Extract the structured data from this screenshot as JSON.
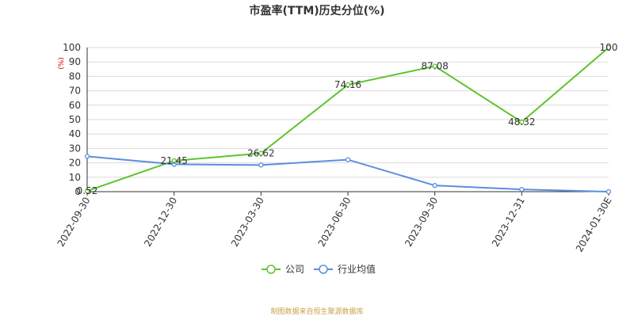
{
  "chart_data": {
    "type": "line",
    "title": "市盈率(TTM)历史分位(%)",
    "unit_label": "(%)",
    "categories": [
      "2022-09-30",
      "2022-12-30",
      "2023-03-30",
      "2023-06-30",
      "2023-09-30",
      "2023-12-31",
      "2024-01-30E"
    ],
    "ylim": [
      0,
      100
    ],
    "yticks": [
      0,
      10,
      20,
      30,
      40,
      50,
      60,
      70,
      80,
      90,
      100
    ],
    "grid": true,
    "legend_position": "bottom",
    "series": [
      {
        "name": "公司",
        "color": "#5dc42e",
        "values": [
          0.52,
          21.45,
          26.62,
          74.16,
          87.08,
          48.32,
          100
        ],
        "labels": [
          "0.52",
          "21.45",
          "26.62",
          "74.16",
          "87.08",
          "48.32",
          "100"
        ]
      },
      {
        "name": "行业均值",
        "color": "#5a8ee0",
        "values": [
          24.5,
          19.0,
          18.5,
          22.2,
          4.3,
          1.6,
          0
        ]
      }
    ]
  },
  "footer": "制图数据来自恒生聚源数据库"
}
